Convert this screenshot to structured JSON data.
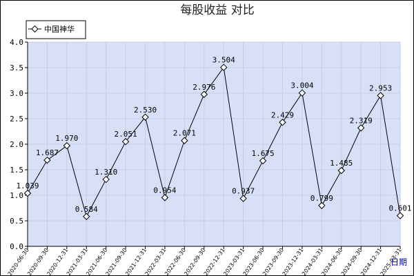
{
  "chart_data": {
    "type": "line",
    "title": "每股收益 对比",
    "x_unit_label": "日期",
    "ylim": [
      0.0,
      4.0
    ],
    "y_ticks": [
      "0.0",
      "0.5",
      "1.0",
      "1.5",
      "2.0",
      "2.5",
      "3.0",
      "3.5",
      "4.0"
    ],
    "grid": true,
    "legend_position": "top-left",
    "categories": [
      "2020-06-30",
      "2020-09-30",
      "2020-12-31",
      "2021-03-31",
      "2021-06-30",
      "2021-09-30",
      "2021-12-31",
      "2022-03-31",
      "2022-06-30",
      "2022-09-30",
      "2022-12-31",
      "2023-03-31",
      "2023-06-30",
      "2023-09-30",
      "2023-12-31",
      "2024-03-31",
      "2024-06-30",
      "2024-09-30",
      "2024-12-31",
      "2025-03-31"
    ],
    "series": [
      {
        "name": "中国神华",
        "values": [
          1.039,
          1.687,
          1.97,
          0.584,
          1.31,
          2.051,
          2.53,
          0.954,
          2.071,
          2.976,
          3.504,
          0.937,
          1.675,
          2.429,
          3.004,
          0.799,
          1.485,
          2.319,
          2.953,
          0.601
        ],
        "labels": [
          "1.039",
          "1.687",
          "1.970",
          "0.584",
          "1.310",
          "2.051",
          "2.530",
          "0.954",
          "2.071",
          "2.976",
          "3.504",
          "0.937",
          "1.675",
          "2.429",
          "3.004",
          "0.799",
          "1.485",
          "2.319",
          "2.953",
          "0.601"
        ]
      }
    ],
    "colors": {
      "plot_bg": "#d8e0f8",
      "grid": "#c7cce3",
      "line": "#000000",
      "marker_fill": "#ffffff",
      "unit_label": "#0000cc"
    }
  }
}
